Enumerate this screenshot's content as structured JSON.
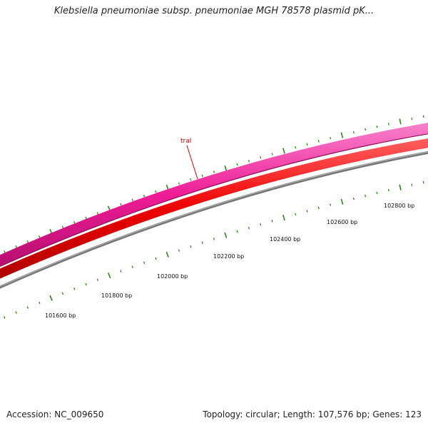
{
  "title": "Klebsiella pneumoniae subsp. pneumoniae MGH 78578 plasmid pK...",
  "footer": {
    "accession": "Accession: NC_009650",
    "summary": "Topology: circular; Length: 107,576 bp; Genes: 123"
  },
  "gene_labels": [
    "traI"
  ],
  "scale_labels": [
    "101600 bp",
    "101800 bp",
    "102000 bp",
    "102200 bp",
    "102400 bp",
    "102600 bp",
    "102800 bp"
  ],
  "colors": {
    "forward_strand": "#ee1c96",
    "reverse_strand": "#ee0000",
    "backbone": "#808080",
    "ticks": "#2a8a1a",
    "gene_label": "#d40000"
  }
}
